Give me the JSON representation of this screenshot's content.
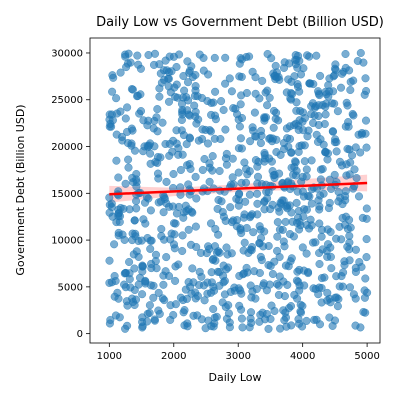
{
  "chart_data": {
    "type": "scatter",
    "title": "Daily Low vs Government Debt (Billion USD)",
    "xlabel": "Daily Low",
    "ylabel": "Government Debt (Billion USD)",
    "xlim": [
      700,
      5200
    ],
    "ylim": [
      -1000,
      31600
    ],
    "xticks": [
      1000,
      2000,
      3000,
      4000,
      5000
    ],
    "yticks": [
      0,
      5000,
      10000,
      15000,
      20000,
      25000,
      30000
    ],
    "grid": false,
    "legend": "none",
    "colors": {
      "points": "#1f77b4",
      "regression": "#ff0000",
      "confidence_band": "#ffb3b3"
    },
    "point_count": 1000,
    "x_range": [
      1000,
      5000
    ],
    "y_range": [
      500,
      30000
    ],
    "trend_line": {
      "x": [
        1000,
        5000
      ],
      "y": [
        14900,
        16100
      ]
    },
    "confidence_band": {
      "x": [
        1000,
        2000,
        3000,
        4000,
        5000
      ],
      "lower": [
        14000,
        14700,
        15150,
        15400,
        15200
      ],
      "upper": [
        15800,
        15600,
        15950,
        16500,
        17000
      ]
    },
    "regression": {
      "intercept": 14600,
      "slope": 0.3
    }
  }
}
